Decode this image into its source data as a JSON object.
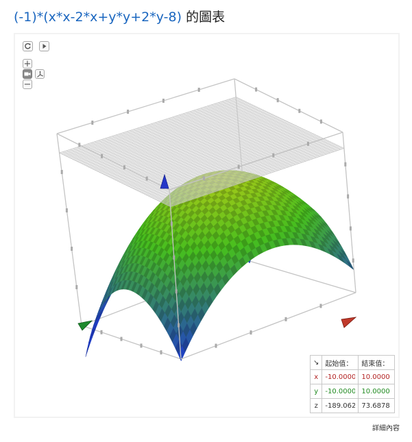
{
  "title": {
    "expression": "(-1)*(x*x-2*x+y*y+2*y-8)",
    "suffix": " 的圖表"
  },
  "controls": {
    "reset": "reset-icon",
    "play": "play-icon",
    "zoom_in": "+",
    "zoom_out": "−",
    "camera": "camera-icon",
    "axes": "axes-icon"
  },
  "range_table": {
    "corner": "↘",
    "headers": [
      "起始值：",
      "結束值："
    ],
    "rows": [
      {
        "axis": "x",
        "start": "-10.0000",
        "end": "10.0000",
        "color": "#b22222"
      },
      {
        "axis": "y",
        "start": "-10.0000",
        "end": "10.0000",
        "color": "#228b22"
      },
      {
        "axis": "z",
        "start": "-189.062",
        "end": "73.6878",
        "color": "#333333"
      }
    ]
  },
  "details_link": "詳細內容",
  "colors": {
    "title_blue": "#1a66bf",
    "axis_x": "#c0392b",
    "axis_y": "#1e8a2e",
    "axis_z": "#2436c8"
  }
}
